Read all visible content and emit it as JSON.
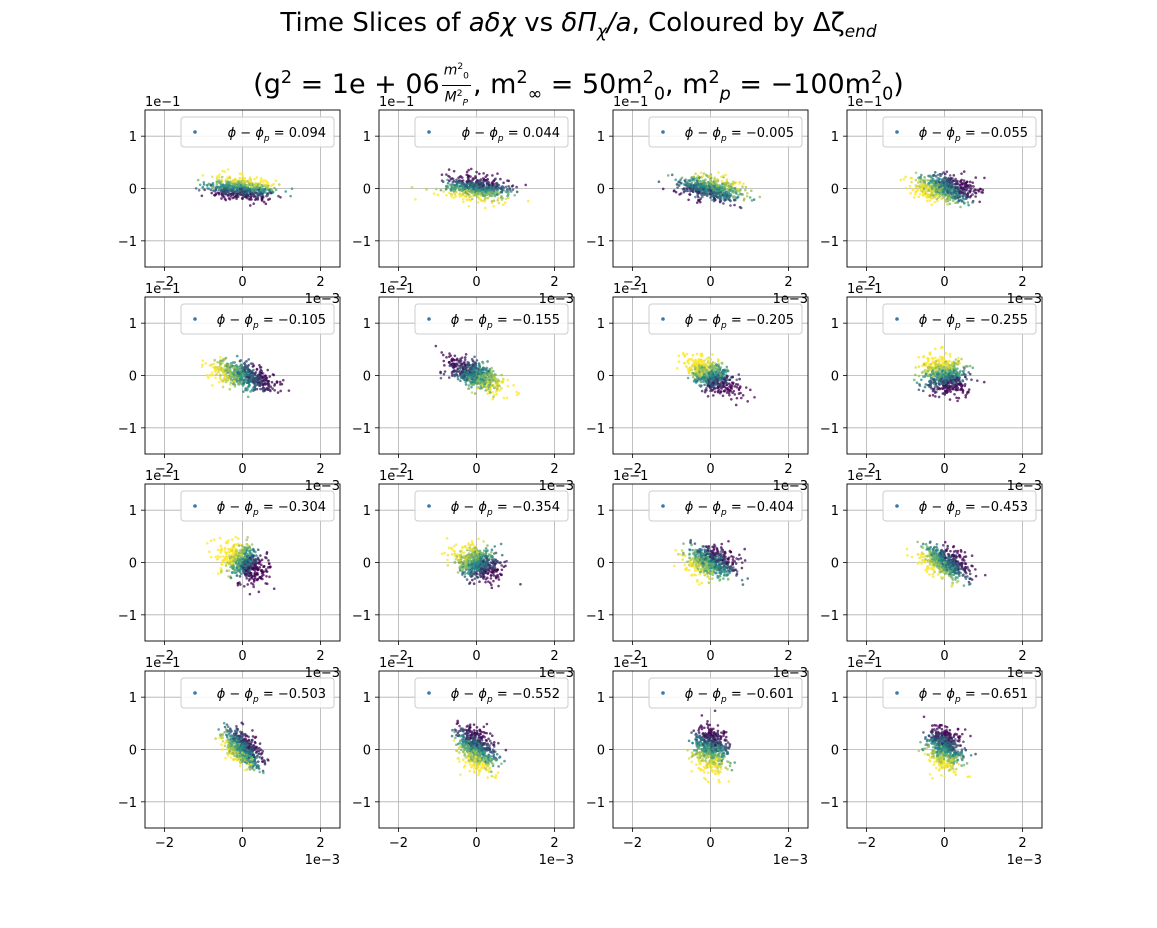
{
  "title": {
    "line1_prefix": "Time Slices of ",
    "line1_a_delta_chi": "aδχ",
    "line1_vs": " vs ",
    "line1_delta_pi": "δΠ",
    "line1_pi_sub": "χ",
    "line1_over_a": "/a",
    "line1_coloured_by": ", Coloured by Δζ",
    "line1_zeta_sub": "end",
    "line2_open": "(g",
    "line2_sq": "2",
    "line2_eq": " = 1e + 06",
    "frac_num": "m",
    "frac_num_sub": "0",
    "frac_num_sup": "2",
    "frac_den": "M",
    "frac_den_sub": "P",
    "frac_den_sup": "2",
    "line2_minf": ", m",
    "line2_minf_sub": "∞",
    "line2_minf_sup": "2",
    "line2_minf_val": " = 50m",
    "line2_minf_val_sub": "0",
    "line2_minf_val_sup": "2",
    "line2_mp": ", m",
    "line2_mp_sub": "p",
    "line2_mp_sup": "2",
    "line2_mp_val": " = −100m",
    "line2_mp_val_sub": "0",
    "line2_mp_val_sup": "2",
    "line2_close": ")"
  },
  "colors": {
    "low": "#440154",
    "mid": "#21918c",
    "high": "#fde725",
    "grid": "#b0b0b0",
    "legend_marker": "#3b78a8"
  },
  "chart_data": {
    "type": "scatter",
    "grid": true,
    "legend_placement": "upper right",
    "x_range": [
      -0.0025,
      0.0025
    ],
    "y_range": [
      -0.15,
      0.15
    ],
    "x_ticks": [
      -0.002,
      0,
      0.002
    ],
    "x_tick_labels": [
      "−2",
      "0",
      "2"
    ],
    "y_ticks": [
      -0.1,
      0,
      0.1
    ],
    "y_tick_labels": [
      "−1",
      "0",
      "1"
    ],
    "x_offset_label": "1e−3",
    "y_offset_label": "1e−1",
    "legend_prefix": "ϕ − ϕ",
    "legend_sub": "p",
    "panels": [
      {
        "phi_minus_phip": "= 0.094",
        "sx": 0.00042,
        "sy": 0.011,
        "rho": -0.15,
        "grad": [
          0.3,
          1
        ]
      },
      {
        "phi_minus_phip": "= 0.044",
        "sx": 0.0004,
        "sy": 0.012,
        "rho": -0.25,
        "grad": [
          -0.3,
          -1
        ]
      },
      {
        "phi_minus_phip": "= −0.005",
        "sx": 0.0004,
        "sy": 0.012,
        "rho": -0.3,
        "grad": [
          0.5,
          0.6
        ]
      },
      {
        "phi_minus_phip": "= −0.055",
        "sx": 0.0004,
        "sy": 0.012,
        "rho": -0.2,
        "grad": [
          -1,
          -0.5
        ]
      },
      {
        "phi_minus_phip": "= −0.105",
        "sx": 0.00038,
        "sy": 0.013,
        "rho": -0.5,
        "grad": [
          -1,
          -0.2
        ]
      },
      {
        "phi_minus_phip": "= −0.155",
        "sx": 0.00035,
        "sy": 0.015,
        "rho": -0.6,
        "grad": [
          0.5,
          -0.4
        ]
      },
      {
        "phi_minus_phip": "= −0.205",
        "sx": 0.00032,
        "sy": 0.017,
        "rho": -0.55,
        "grad": [
          -0.5,
          0.8
        ]
      },
      {
        "phi_minus_phip": "= −0.255",
        "sx": 0.00028,
        "sy": 0.018,
        "rho": -0.2,
        "grad": [
          -0.3,
          1
        ]
      },
      {
        "phi_minus_phip": "= −0.304",
        "sx": 0.00028,
        "sy": 0.017,
        "rho": -0.3,
        "grad": [
          -1,
          0.6
        ]
      },
      {
        "phi_minus_phip": "= −0.354",
        "sx": 0.0003,
        "sy": 0.016,
        "rho": -0.3,
        "grad": [
          -0.6,
          0.6
        ]
      },
      {
        "phi_minus_phip": "= −0.404",
        "sx": 0.00033,
        "sy": 0.015,
        "rho": -0.2,
        "grad": [
          -0.8,
          -0.6
        ]
      },
      {
        "phi_minus_phip": "= −0.453",
        "sx": 0.0003,
        "sy": 0.015,
        "rho": -0.5,
        "grad": [
          -1,
          -0.6
        ]
      },
      {
        "phi_minus_phip": "= −0.503",
        "sx": 0.00024,
        "sy": 0.018,
        "rho": -0.55,
        "grad": [
          -0.8,
          -0.7
        ]
      },
      {
        "phi_minus_phip": "= −0.552",
        "sx": 0.00024,
        "sy": 0.02,
        "rho": -0.4,
        "grad": [
          -0.5,
          -1
        ]
      },
      {
        "phi_minus_phip": "= −0.601",
        "sx": 0.00022,
        "sy": 0.02,
        "rho": -0.1,
        "grad": [
          -0.3,
          -1
        ]
      },
      {
        "phi_minus_phip": "= −0.651",
        "sx": 0.00022,
        "sy": 0.02,
        "rho": -0.2,
        "grad": [
          -0.3,
          -1
        ]
      }
    ]
  }
}
